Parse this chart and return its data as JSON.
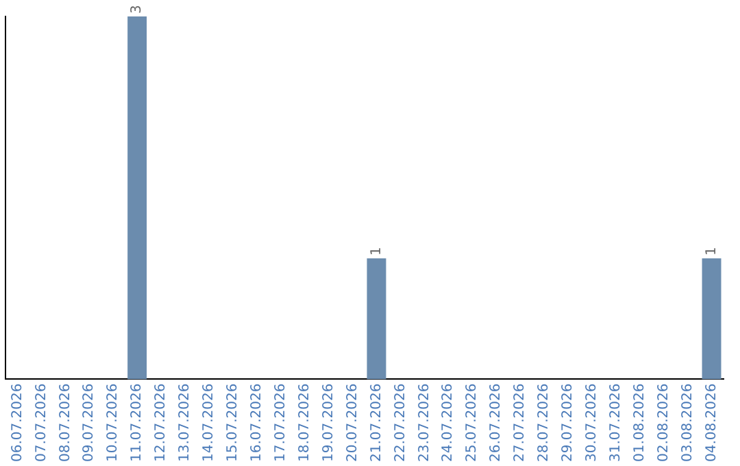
{
  "chart_data": {
    "type": "bar",
    "categories": [
      "06.07.2026",
      "07.07.2026",
      "08.07.2026",
      "09.07.2026",
      "10.07.2026",
      "11.07.2026",
      "12.07.2026",
      "13.07.2026",
      "14.07.2026",
      "15.07.2026",
      "16.07.2026",
      "17.07.2026",
      "18.07.2026",
      "19.07.2026",
      "20.07.2026",
      "21.07.2026",
      "22.07.2026",
      "23.07.2026",
      "24.07.2026",
      "25.07.2026",
      "26.07.2026",
      "27.07.2026",
      "28.07.2026",
      "29.07.2026",
      "30.07.2026",
      "31.07.2026",
      "01.08.2026",
      "02.08.2026",
      "03.08.2026",
      "04.08.2026"
    ],
    "values": [
      0,
      0,
      0,
      0,
      0,
      3,
      0,
      0,
      0,
      0,
      0,
      0,
      0,
      0,
      0,
      1,
      0,
      0,
      0,
      0,
      0,
      0,
      0,
      0,
      0,
      0,
      0,
      0,
      0,
      1
    ],
    "value_labels": [
      null,
      null,
      null,
      null,
      null,
      "3",
      null,
      null,
      null,
      null,
      null,
      null,
      null,
      null,
      null,
      "1",
      null,
      null,
      null,
      null,
      null,
      null,
      null,
      null,
      null,
      null,
      null,
      null,
      null,
      "1"
    ],
    "color": "#6b8cae",
    "grid": false,
    "legend": false,
    "tick_labels": "x"
  }
}
